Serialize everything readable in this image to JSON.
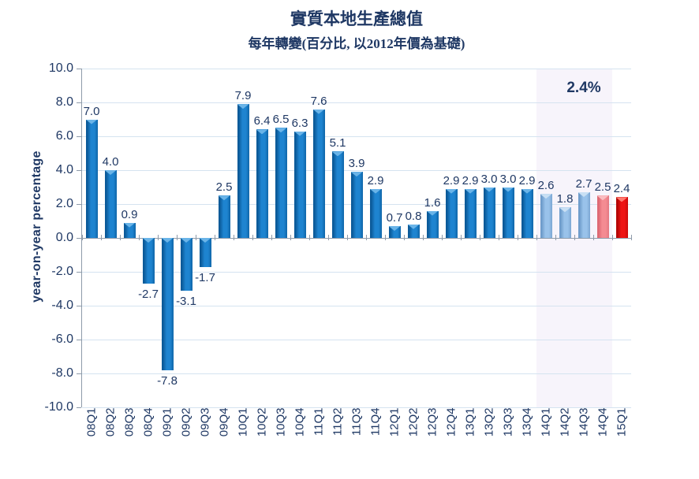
{
  "header": {
    "title": "實質本地生產總值",
    "subtitle": "每年轉變(百分比, 以2012年價為基礎)"
  },
  "chart_data": {
    "type": "bar",
    "title": "實質本地生產總值",
    "subtitle": "每年轉變(百分比, 以2012年價為基礎)",
    "ylabel": "year-on-year percentage",
    "xlabel": "",
    "ylim": [
      -10,
      10
    ],
    "yticks": [
      10,
      8,
      6,
      4,
      2,
      0,
      -2,
      -4,
      -6,
      -8,
      -10
    ],
    "grid": true,
    "legend_position": "none",
    "categories": [
      "08Q1",
      "08Q2",
      "08Q3",
      "08Q4",
      "09Q1",
      "09Q2",
      "09Q3",
      "09Q4",
      "10Q1",
      "10Q2",
      "10Q3",
      "10Q4",
      "11Q1",
      "11Q2",
      "11Q3",
      "11Q4",
      "12Q1",
      "12Q2",
      "12Q3",
      "12Q4",
      "13Q1",
      "13Q2",
      "13Q3",
      "13Q4",
      "14Q1",
      "14Q2",
      "14Q3",
      "14Q4",
      "15Q1"
    ],
    "values": [
      7.0,
      4.0,
      0.9,
      -2.7,
      -7.8,
      -3.1,
      -1.7,
      2.5,
      7.9,
      6.4,
      6.5,
      6.3,
      7.6,
      5.1,
      3.9,
      2.9,
      0.7,
      0.8,
      1.6,
      2.9,
      2.9,
      3.0,
      3.0,
      2.9,
      2.6,
      1.8,
      2.7,
      2.5,
      2.4
    ],
    "bar_styles": [
      "blue",
      "blue",
      "blue",
      "blue",
      "blue",
      "blue",
      "blue",
      "blue",
      "blue",
      "blue",
      "blue",
      "blue",
      "blue",
      "blue",
      "blue",
      "blue",
      "blue",
      "blue",
      "blue",
      "blue",
      "blue",
      "blue",
      "blue",
      "blue",
      "lightblue",
      "lightblue",
      "lightblue",
      "pink",
      "red"
    ],
    "annotation": {
      "text": "2.4%",
      "over_from_category": "14Q1",
      "over_to_category": "14Q4"
    },
    "highlight_band": {
      "from_category": "14Q1",
      "to_category": "14Q4",
      "color": "#F7F4FB"
    },
    "palette": {
      "blue": {
        "edge": "#0B5A99",
        "body": "#1E84D0",
        "edge2": "#0F65A8",
        "bevel": "#6AB4E8"
      },
      "lightblue": {
        "edge": "#6E9CCB",
        "body": "#99C2EA",
        "edge2": "#7BA6D2",
        "bevel": "#C9E0F4"
      },
      "pink": {
        "edge": "#DD6872",
        "body": "#F48B92",
        "edge2": "#E37781",
        "bevel": "#FABDC1"
      },
      "red": {
        "edge": "#B30505",
        "body": "#EE1414",
        "edge2": "#C90A0A",
        "bevel": "#FF7A70"
      }
    },
    "style": {
      "text_color": "#1F3864",
      "gridline_color": "#D5E3F0",
      "axis_color": "#8E9BAA"
    }
  }
}
